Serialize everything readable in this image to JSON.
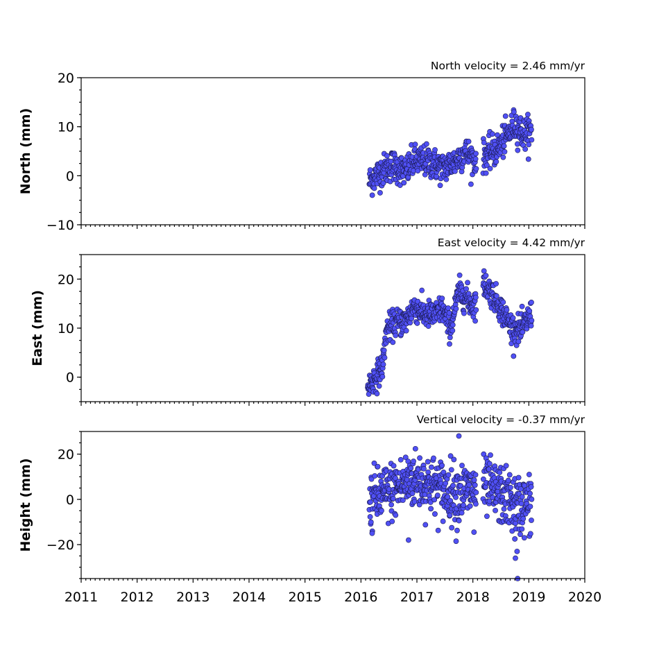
{
  "chart_data": [
    {
      "type": "scatter",
      "title": "North velocity = 2.46 mm/yr",
      "ylabel": "North (mm)",
      "xlim": [
        2011,
        2020
      ],
      "ylim": [
        -10,
        20
      ],
      "yticks": [
        -10,
        0,
        10,
        20
      ],
      "ytick_labels": [
        "−10",
        "0",
        "10",
        "20"
      ],
      "xtick_labels_shown": false,
      "trend": [
        {
          "x": 2016.15,
          "y": -1.2
        },
        {
          "x": 2016.35,
          "y": 0.8
        },
        {
          "x": 2016.55,
          "y": 2.2
        },
        {
          "x": 2016.8,
          "y": 0.8
        },
        {
          "x": 2016.95,
          "y": 3.0
        },
        {
          "x": 2017.2,
          "y": 3.0
        },
        {
          "x": 2017.45,
          "y": 1.5
        },
        {
          "x": 2017.7,
          "y": 3.0
        },
        {
          "x": 2017.85,
          "y": 5.0
        },
        {
          "x": 2018.05,
          "y": 3.0
        },
        {
          "x": 2018.2,
          "y": 4.0
        },
        {
          "x": 2018.45,
          "y": 5.5
        },
        {
          "x": 2018.6,
          "y": 8.0
        },
        {
          "x": 2018.75,
          "y": 10.5
        },
        {
          "x": 2018.9,
          "y": 8.5
        },
        {
          "x": 2019.05,
          "y": 9.0
        }
      ],
      "spread": 1.6,
      "point_count": 560
    },
    {
      "type": "scatter",
      "title": "East velocity = 4.42 mm/yr",
      "ylabel": "East (mm)",
      "xlim": [
        2011,
        2020
      ],
      "ylim": [
        -5,
        25
      ],
      "yticks": [
        0,
        10,
        20
      ],
      "ytick_labels": [
        "0",
        "10",
        "20"
      ],
      "xtick_labels_shown": false,
      "trend": [
        {
          "x": 2016.12,
          "y": -2.0
        },
        {
          "x": 2016.3,
          "y": 0.5
        },
        {
          "x": 2016.4,
          "y": 3.0
        },
        {
          "x": 2016.45,
          "y": 9.5
        },
        {
          "x": 2016.6,
          "y": 11.0
        },
        {
          "x": 2016.8,
          "y": 11.5
        },
        {
          "x": 2016.95,
          "y": 14.5
        },
        {
          "x": 2017.1,
          "y": 13.0
        },
        {
          "x": 2017.3,
          "y": 12.5
        },
        {
          "x": 2017.45,
          "y": 14.0
        },
        {
          "x": 2017.6,
          "y": 10.0
        },
        {
          "x": 2017.75,
          "y": 17.5
        },
        {
          "x": 2017.9,
          "y": 16.0
        },
        {
          "x": 2018.0,
          "y": 14.5
        },
        {
          "x": 2018.2,
          "y": 19.0
        },
        {
          "x": 2018.35,
          "y": 17.0
        },
        {
          "x": 2018.5,
          "y": 14.0
        },
        {
          "x": 2018.7,
          "y": 10.0
        },
        {
          "x": 2018.85,
          "y": 9.5
        },
        {
          "x": 2019.05,
          "y": 13.0
        }
      ],
      "spread": 1.4,
      "point_count": 600
    },
    {
      "type": "scatter",
      "title": "Vertical velocity = -0.37 mm/yr",
      "ylabel": "Height (mm)",
      "xlim": [
        2011,
        2020
      ],
      "ylim": [
        -35,
        30
      ],
      "yticks": [
        -20,
        0,
        20
      ],
      "ytick_labels": [
        "−20",
        "0",
        "20"
      ],
      "xtick_labels_shown": true,
      "xticks": [
        2011,
        2012,
        2013,
        2014,
        2015,
        2016,
        2017,
        2018,
        2019,
        2020
      ],
      "xtick_labels": [
        "2011",
        "2012",
        "2013",
        "2014",
        "2015",
        "2016",
        "2017",
        "2018",
        "2019",
        "2020"
      ],
      "trend": [
        {
          "x": 2016.15,
          "y": 0.0
        },
        {
          "x": 2016.5,
          "y": 3.0
        },
        {
          "x": 2016.9,
          "y": 9.0
        },
        {
          "x": 2017.2,
          "y": 7.0
        },
        {
          "x": 2017.5,
          "y": 4.0
        },
        {
          "x": 2017.8,
          "y": 3.0
        },
        {
          "x": 2018.0,
          "y": 4.0
        },
        {
          "x": 2018.25,
          "y": 5.0
        },
        {
          "x": 2018.5,
          "y": 2.0
        },
        {
          "x": 2018.8,
          "y": -3.0
        },
        {
          "x": 2019.05,
          "y": -2.0
        }
      ],
      "spread": 6.5,
      "outliers": [
        {
          "x": 2016.85,
          "y": -18
        },
        {
          "x": 2017.75,
          "y": 28
        },
        {
          "x": 2017.7,
          "y": -18.5
        },
        {
          "x": 2018.76,
          "y": -26
        },
        {
          "x": 2018.79,
          "y": -23
        },
        {
          "x": 2018.8,
          "y": -35
        },
        {
          "x": 2016.2,
          "y": -15
        },
        {
          "x": 2018.75,
          "y": -17.5
        },
        {
          "x": 2018.02,
          "y": -14.5
        }
      ],
      "point_count": 600
    }
  ],
  "style": {
    "marker_fill": "#5050f5",
    "marker_edge": "#1a1a50"
  }
}
